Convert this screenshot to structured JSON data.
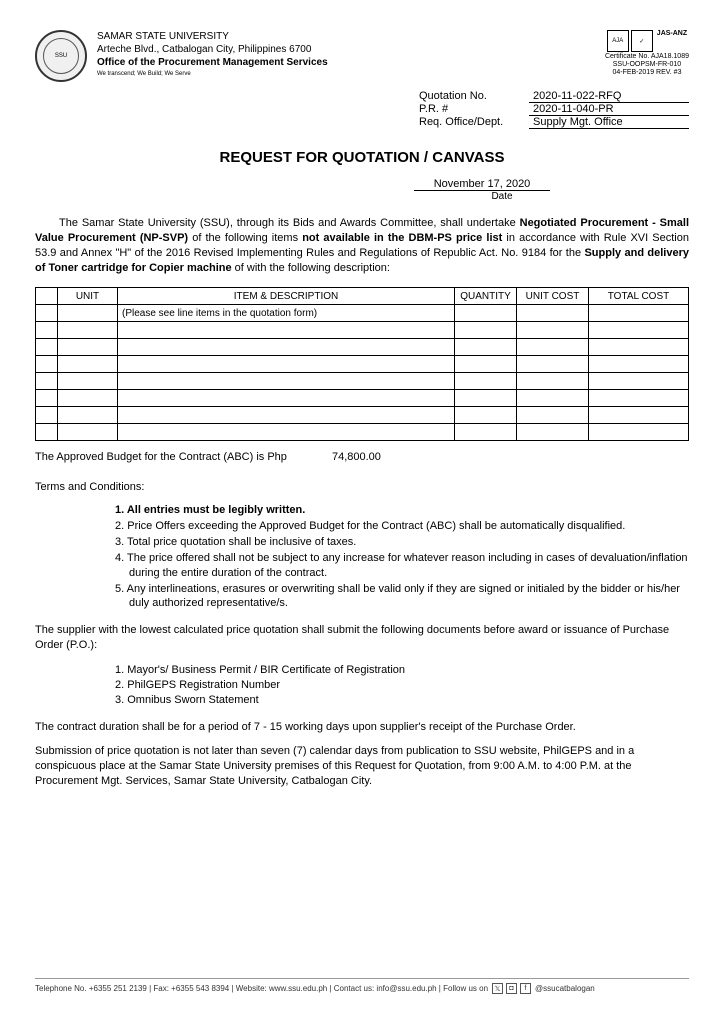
{
  "header": {
    "university": "SAMAR STATE UNIVERSITY",
    "address": "Arteche Blvd., Catbalogan City, Philippines 6700",
    "office": "Office of the Procurement Management Services",
    "tagline": "We transcend; We Build; We Serve",
    "cert_top": "JAS-ANZ",
    "cert_aja": "AJA",
    "cert_no_label": "Certificate No. AJA18.1089",
    "doc_code": "SSU-OOPSM-FR-010",
    "doc_rev": "04-FEB-2019 REV. #3"
  },
  "quotation": {
    "no_label": "Quotation No.",
    "no_value": "2020-11-022-RFQ",
    "pr_label": "P.R. #",
    "pr_value": "2020-11-040-PR",
    "dept_label": "Req. Office/Dept.",
    "dept_value": "Supply Mgt. Office"
  },
  "title": "REQUEST FOR QUOTATION / CANVASS",
  "date": {
    "value": "November 17, 2020",
    "label": "Date"
  },
  "intro": {
    "t1": "The Samar State University (SSU), through its Bids and Awards Committee, shall undertake ",
    "b1": "Negotiated Procurement - Small Value Procurement (NP-SVP)",
    "t2": " of the following items ",
    "b2": "not available in the DBM-PS price list",
    "t3": " in accordance with Rule XVI Section 53.9 and Annex \"H\" of the 2016 Revised Implementing Rules and Regulations of Republic Act. No. 9184 for the ",
    "b3": "Supply and delivery of Toner cartridge for Copier machine",
    "t4": " of  with the following description:"
  },
  "table": {
    "cols": {
      "unit": "UNIT",
      "desc": "ITEM & DESCRIPTION",
      "qty": "QUANTITY",
      "unit_cost": "UNIT COST",
      "total_cost": "TOTAL COST"
    },
    "first_row_desc": "(Please see line items in the quotation form)",
    "empty_rows": 7
  },
  "abc": {
    "label": "The Approved Budget for the Contract (ABC) is Php",
    "amount": "74,800.00"
  },
  "terms_head": "Terms and Conditions:",
  "terms": [
    "1. All entries must be legibly written.",
    "2. Price Offers exceeding the Approved Budget for the Contract (ABC) shall be automatically disqualified.",
    "3. Total price quotation shall be inclusive of taxes.",
    "4. The price offered shall not be subject to any increase for whatever reason including in cases of devaluation/inflation during the entire duration of the contract.",
    "5. Any interlineations, erasures or overwriting shall be valid only if they are signed or initialed by the bidder or his/her duly authorized representative/s."
  ],
  "supplier_para": "The supplier with the lowest calculated price quotation shall submit the following documents before award or issuance of Purchase Order (P.O.):",
  "docs": [
    "1. Mayor's/ Business Permit / BIR Certificate of Registration",
    "2. PhilGEPS Registration Number",
    "3. Omnibus Sworn Statement"
  ],
  "duration_para": "The contract duration shall be for a period of 7 - 15 working days upon supplier's receipt of the Purchase Order.",
  "submission_para": "Submission of price quotation is not later than seven (7) calendar days from publication to SSU website, PhilGEPS and in a conspicuous place at the Samar State University premises of this Request for Quotation, from 9:00 A.M. to 4:00 P.M. at the Procurement Mgt. Services, Samar State University, Catbalogan City.",
  "footer": {
    "tel": "Telephone No. +6355 251 2139 | Fax: +6355 543 8394 | Website: www.ssu.edu.ph | Contact us: info@ssu.edu.ph | Follow us on",
    "handle": "@ssucatbalogan"
  }
}
